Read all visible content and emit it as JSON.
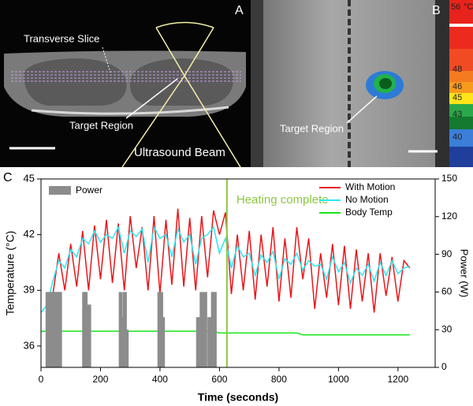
{
  "images": {
    "a": {
      "label": "A",
      "slice": "Transverse Slice",
      "target": "Target Region",
      "beam": "Ultrasound Beam"
    },
    "b": {
      "label": "B",
      "target": "Target Region",
      "colorbar": [
        "56",
        "°C",
        "48",
        "46",
        "45",
        "43",
        "40"
      ]
    }
  },
  "chart_data": {
    "type": "line",
    "panel_label": "C",
    "x_label": "Time (seconds)",
    "y_label": "Temperature (°C)",
    "y2_label": "Power (W)",
    "xlim": [
      0,
      1325
    ],
    "xticks": [
      0,
      200,
      400,
      600,
      800,
      1000,
      1200
    ],
    "ylim": [
      34.85,
      45
    ],
    "yticks": [
      36,
      39,
      42,
      45
    ],
    "y2lim": [
      0,
      150
    ],
    "y2ticks": [
      0,
      30,
      60,
      90,
      120,
      150
    ],
    "annotations": [
      {
        "text": "Heating complete",
        "x": 625,
        "color": "#8dc63f"
      }
    ],
    "x": [
      0,
      20,
      40,
      60,
      80,
      100,
      120,
      140,
      160,
      180,
      200,
      220,
      240,
      260,
      280,
      300,
      320,
      340,
      360,
      380,
      400,
      420,
      440,
      460,
      480,
      500,
      520,
      540,
      560,
      580,
      600,
      620,
      640,
      660,
      680,
      700,
      720,
      740,
      760,
      780,
      800,
      820,
      840,
      860,
      880,
      900,
      920,
      940,
      960,
      980,
      1000,
      1020,
      1040,
      1060,
      1080,
      1100,
      1120,
      1140,
      1160,
      1180,
      1200,
      1220,
      1240
    ],
    "series": [
      {
        "name": "With Motion",
        "color": "#e8171b",
        "values": [
          null,
          null,
          38.8,
          41.0,
          39.0,
          41.5,
          39.2,
          42.2,
          39.0,
          42.5,
          39.6,
          42.8,
          39.4,
          42.6,
          39.0,
          43.0,
          40.2,
          42.4,
          39.0,
          43.0,
          38.8,
          42.8,
          39.3,
          43.4,
          39.2,
          42.9,
          39.0,
          43.0,
          39.7,
          43.3,
          42.0,
          43.2,
          38.8,
          42.0,
          39.0,
          42.2,
          38.5,
          42.0,
          39.2,
          42.4,
          38.4,
          41.8,
          38.6,
          42.4,
          39.6,
          41.8,
          38.0,
          41.0,
          38.6,
          41.5,
          38.2,
          41.4,
          38.0,
          41.2,
          38.4,
          41.0,
          37.8,
          41.0,
          38.7,
          40.8,
          38.4,
          40.6,
          40.2
        ]
      },
      {
        "name": "No Motion",
        "color": "#2ee6f0",
        "values": [
          37.8,
          38.2,
          39.5,
          40.6,
          40.2,
          41.2,
          40.8,
          41.8,
          41.5,
          42.2,
          41.6,
          42.0,
          41.8,
          42.4,
          41.0,
          42.2,
          41.9,
          42.3,
          40.5,
          42.4,
          41.8,
          42.0,
          40.8,
          42.3,
          41.6,
          42.0,
          40.4,
          41.8,
          42.0,
          42.4,
          41.0,
          41.8,
          40.2,
          41.4,
          40.8,
          41.0,
          39.8,
          40.9,
          40.5,
          41.1,
          39.6,
          40.7,
          40.4,
          41.0,
          40.1,
          40.6,
          40.3,
          40.4,
          39.6,
          40.8,
          40.0,
          40.5,
          39.4,
          40.2,
          39.8,
          40.4,
          39.5,
          40.5,
          39.8,
          40.6,
          39.9,
          40.2,
          40.3
        ]
      },
      {
        "name": "Body Temp",
        "color": "#19e619",
        "values": [
          36.8,
          36.8,
          36.8,
          36.8,
          36.8,
          36.8,
          36.8,
          36.8,
          36.8,
          36.8,
          36.8,
          36.8,
          36.8,
          36.8,
          36.8,
          36.8,
          36.8,
          36.8,
          36.8,
          36.8,
          36.8,
          36.8,
          36.8,
          36.8,
          36.8,
          36.8,
          36.8,
          36.8,
          36.8,
          36.8,
          36.7,
          36.7,
          36.7,
          36.7,
          36.7,
          36.7,
          36.7,
          36.7,
          36.7,
          36.7,
          36.7,
          36.7,
          36.7,
          36.7,
          36.6,
          36.6,
          36.6,
          36.6,
          36.6,
          36.6,
          36.6,
          36.6,
          36.6,
          36.6,
          36.6,
          36.6,
          36.6,
          36.6,
          36.6,
          36.6,
          36.6,
          36.6,
          36.6
        ]
      },
      {
        "name": "Power",
        "color": "#8c8c8c",
        "axis": "y2",
        "bar": true,
        "x": [
          22,
          28,
          34,
          40,
          46,
          52,
          58,
          64,
          145,
          150,
          156,
          162,
          268,
          274,
          282,
          288,
          398,
          404,
          410,
          528,
          540,
          552,
          566,
          578,
          584
        ],
        "values": [
          60,
          60,
          60,
          60,
          60,
          60,
          60,
          60,
          60,
          60,
          40,
          50,
          60,
          40,
          60,
          30,
          60,
          60,
          40,
          40,
          60,
          60,
          40,
          60,
          60
        ]
      }
    ]
  }
}
